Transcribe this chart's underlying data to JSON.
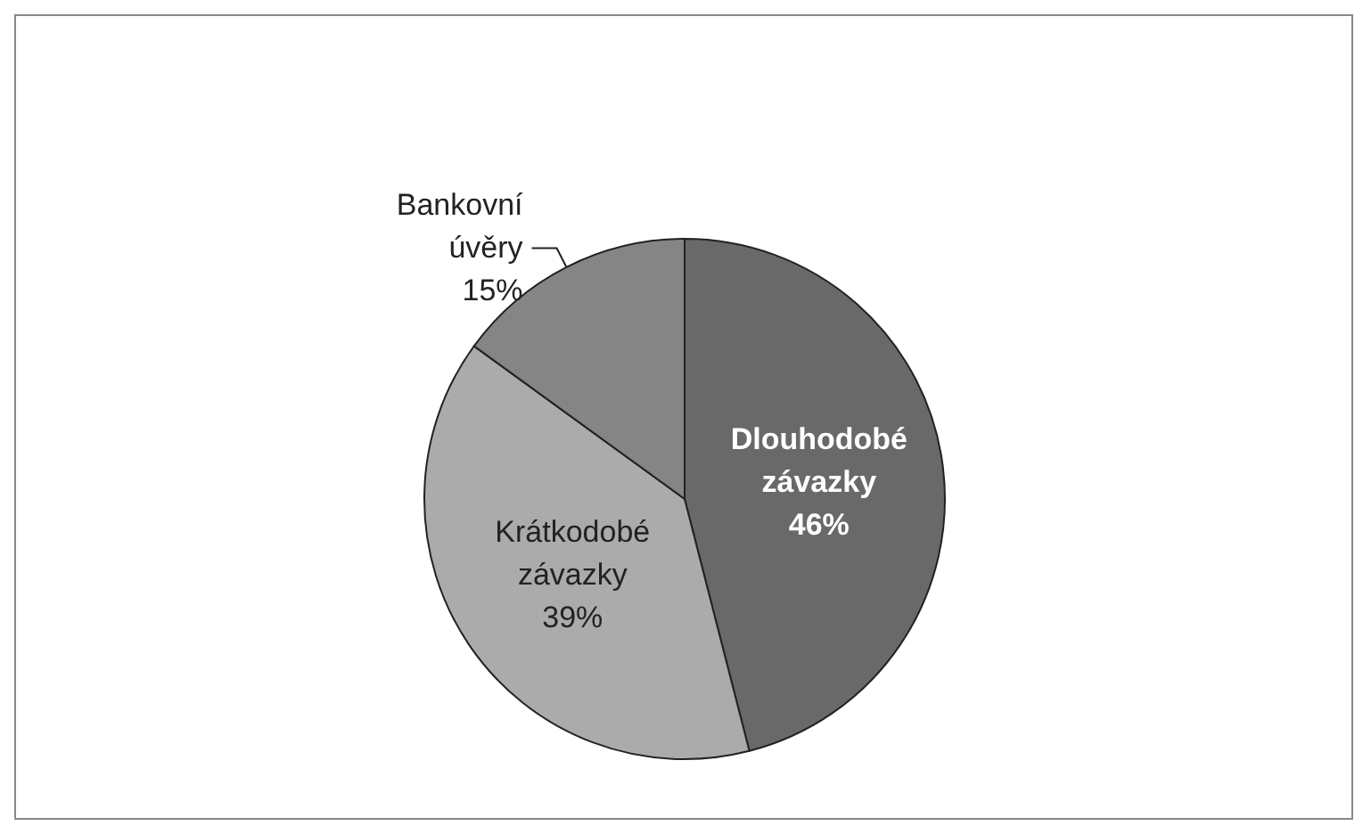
{
  "chart_data": {
    "type": "pie",
    "categories": [
      "Dlouhodobé závazky",
      "Krátkodobé závazky",
      "Bankovní úvěry"
    ],
    "values": [
      46,
      39,
      15
    ],
    "colors": [
      "#696969",
      "#ababab",
      "#858585"
    ],
    "value_labels": [
      "46%",
      "39%",
      "15%"
    ],
    "legend": false
  }
}
